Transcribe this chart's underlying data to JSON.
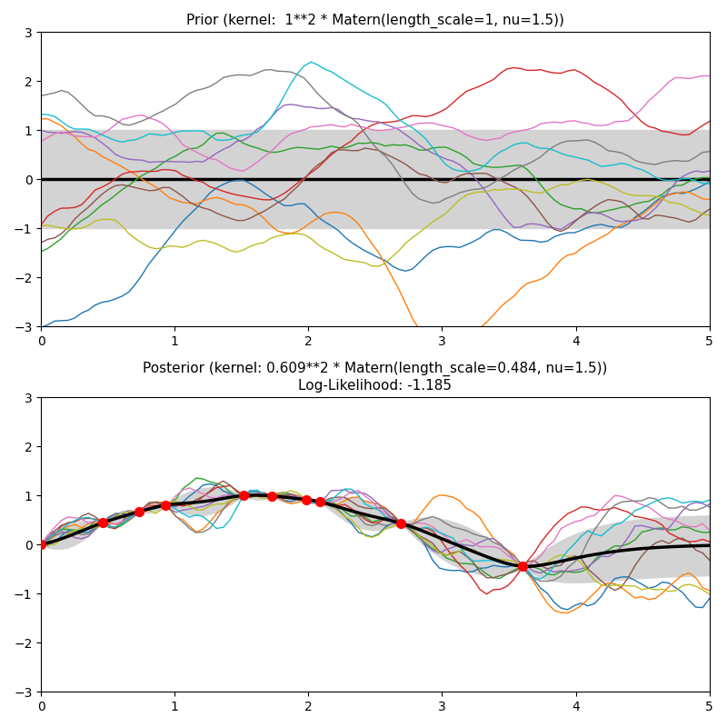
{
  "prior_title": "Prior (kernel:  1**2 * Matern(length_scale=1, nu=1.5))",
  "posterior_title": "Posterior (kernel: 0.609**2 * Matern(length_scale=0.484, nu=1.5))\nLog-Likelihood: -1.185",
  "x_min": 0,
  "x_max": 5,
  "y_min": -3,
  "y_max": 3,
  "mean_color": "#000000",
  "confidence_color": "#d3d3d3",
  "observation_color": "#ff0000",
  "n_samples": 10,
  "figsize": [
    8,
    8
  ],
  "dpi": 100,
  "sample_colors": [
    "#1f77b4",
    "#ff7f0e",
    "#2ca02c",
    "#d62728",
    "#9467bd",
    "#8c564b",
    "#e377c2",
    "#7f7f7f",
    "#bcbd22",
    "#17becf"
  ]
}
